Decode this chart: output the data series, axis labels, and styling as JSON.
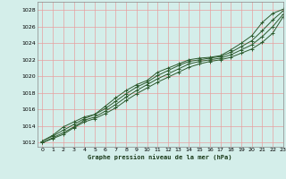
{
  "xlabel": "Graphe pression niveau de la mer (hPa)",
  "ylim": [
    1011.5,
    1029
  ],
  "xlim": [
    -0.5,
    23
  ],
  "yticks": [
    1012,
    1014,
    1016,
    1018,
    1020,
    1022,
    1024,
    1026,
    1028
  ],
  "xticks": [
    0,
    1,
    2,
    3,
    4,
    5,
    6,
    7,
    8,
    9,
    10,
    11,
    12,
    13,
    14,
    15,
    16,
    17,
    18,
    19,
    20,
    21,
    22,
    23
  ],
  "background_color": "#d4eeea",
  "grid_color": "#e8a0a0",
  "line_color": "#2d5a2d",
  "series": [
    [
      1012.2,
      1012.9,
      1013.9,
      1014.5,
      1015.1,
      1015.4,
      1016.4,
      1017.4,
      1018.3,
      1019.0,
      1019.5,
      1020.5,
      1021.0,
      1021.5,
      1022.0,
      1022.2,
      1022.3,
      1022.5,
      1023.2,
      1024.0,
      1024.9,
      1026.5,
      1027.6,
      1028.1
    ],
    [
      1012.2,
      1012.8,
      1013.5,
      1014.2,
      1014.9,
      1015.4,
      1016.1,
      1017.0,
      1017.9,
      1018.7,
      1019.3,
      1020.1,
      1020.7,
      1021.3,
      1021.8,
      1022.0,
      1022.2,
      1022.4,
      1022.9,
      1023.6,
      1024.3,
      1025.5,
      1026.8,
      1027.9
    ],
    [
      1012.0,
      1012.6,
      1013.2,
      1013.9,
      1014.7,
      1015.1,
      1015.8,
      1016.6,
      1017.5,
      1018.3,
      1019.0,
      1019.7,
      1020.3,
      1020.9,
      1021.5,
      1021.8,
      1022.0,
      1022.2,
      1022.6,
      1023.2,
      1023.8,
      1024.8,
      1026.0,
      1027.5
    ],
    [
      1012.0,
      1012.5,
      1013.0,
      1013.8,
      1014.5,
      1014.9,
      1015.5,
      1016.2,
      1017.1,
      1017.9,
      1018.6,
      1019.3,
      1019.9,
      1020.5,
      1021.1,
      1021.5,
      1021.8,
      1022.0,
      1022.3,
      1022.8,
      1023.3,
      1024.1,
      1025.2,
      1027.2
    ]
  ]
}
